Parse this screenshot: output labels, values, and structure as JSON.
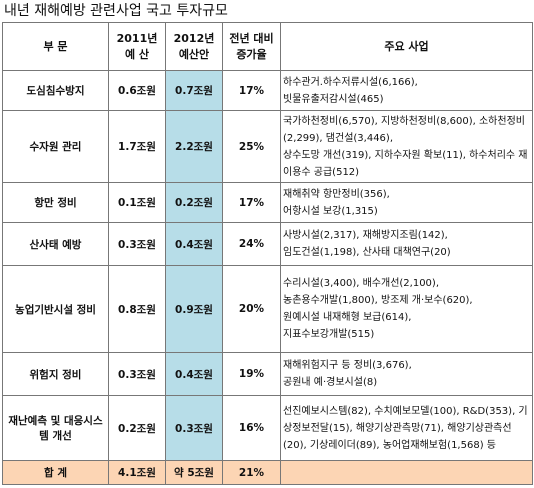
{
  "title": "내년 재해예방 관련사업 국고 투자규모",
  "table": {
    "header": [
      [
        "부 문"
      ],
      [
        "2011년",
        "예 산"
      ],
      [
        "2012년",
        "예산안"
      ],
      [
        "전년 대비",
        "증가율"
      ],
      [
        "주요 사업"
      ]
    ],
    "rows": [
      [
        "도심침수방지",
        "0.6조원",
        "0.7조원",
        "17%",
        [
          "하수관거.하수저류시설(6,166),",
          "빗물유출저감시설(465)"
        ]
      ],
      [
        "수자원 관리",
        "1.7조원",
        "2.2조원",
        "25%",
        [
          "국가하천정비(6,570), 지방하천정비(8,600), 소하천정비(2,299), 댐건설(3,446),",
          "상수도망 개선(319), 지하수자원 확보(11), 하수처리수 재이용수 공급(512)"
        ]
      ],
      [
        "항만 정비",
        "0.1조원",
        "0.2조원",
        "17%",
        [
          "재해취약 항만정비(356),",
          "어항시설 보강(1,315)"
        ]
      ],
      [
        "산사태 예방",
        "0.3조원",
        "0.4조원",
        "24%",
        [
          "사방시설(2,317), 재해방지조림(142),",
          "임도건설(1,198), 산사태 대책연구(20)"
        ]
      ],
      [
        "농업기반시설 정비",
        "0.8조원",
        "0.9조원",
        "20%",
        [
          "수리시설(3,400), 배수개선(2,100),",
          "농촌용수개발(1,800), 방조제 개·보수(620),",
          "원예시설 내재해형 보급(614),",
          "지표수보강개발(515)"
        ]
      ],
      [
        "위험지 정비",
        "0.3조원",
        "0.4조원",
        "19%",
        [
          "재해위험지구 등 정비(3,676),",
          "공원내 예·경보시설(8)"
        ]
      ],
      [
        "재난예측 및 대응시스템 개선",
        "0.2조원",
        "0.3조원",
        "16%",
        [
          "선진예보시스템(82), 수치예보모델(100), R&D(353), 기상정보전달(15), 해양기상관측망(71), 해양기상관측선(20), 기상레이더(89), 농어업재해보험(1,568) 등"
        ]
      ]
    ],
    "total": [
      "합 계",
      "4.1조원",
      "약 5조원",
      "21%"
    ]
  }
}
